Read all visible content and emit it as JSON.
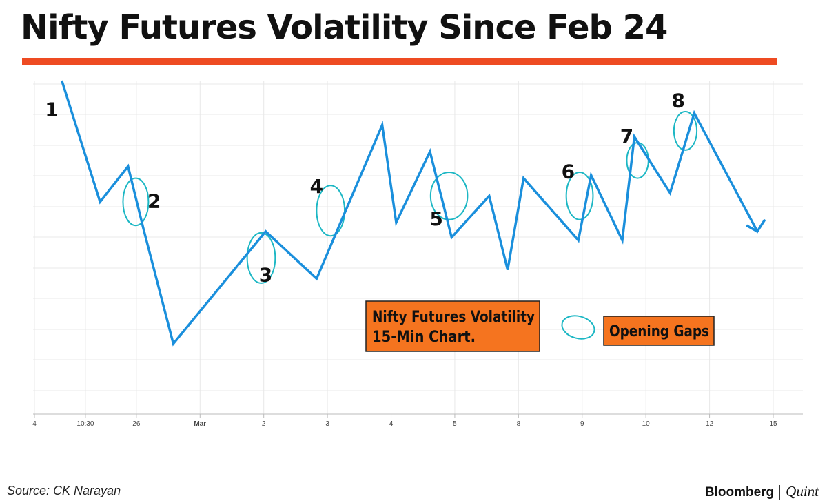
{
  "title": "Nifty Futures Volatility Since Feb 24",
  "footer": {
    "source": "Source: CK Narayan",
    "brand_primary": "Bloomberg",
    "brand_secondary": "Quint"
  },
  "colors": {
    "title_bar": "#ee4b22",
    "line": "#1a8fdc",
    "gap_ellipse": "#1cb7c4",
    "label_box": "#f5741f",
    "grid": "#e8e8e8",
    "axis": "#bbbbbb"
  },
  "chart_data": {
    "type": "line",
    "title": "Nifty Futures Volatility Since Feb 24",
    "xlabel": "",
    "ylabel": "",
    "grid": true,
    "y_tick_labels_shown": false,
    "x_ticks": [
      {
        "label": "4",
        "x": 0
      },
      {
        "label": "10:30",
        "x": 0.8
      },
      {
        "label": "26",
        "x": 1.6
      },
      {
        "label": "Mar",
        "x": 2.6
      },
      {
        "label": "2",
        "x": 3.6
      },
      {
        "label": "3",
        "x": 4.6
      },
      {
        "label": "4",
        "x": 5.6
      },
      {
        "label": "5",
        "x": 6.6
      },
      {
        "label": "8",
        "x": 7.6
      },
      {
        "label": "9",
        "x": 8.6
      },
      {
        "label": "10",
        "x": 9.6
      },
      {
        "label": "12",
        "x": 10.6
      },
      {
        "label": "15",
        "x": 11.6
      }
    ],
    "xlim": [
      0,
      11.6
    ],
    "ylim": [
      0,
      100
    ],
    "series": [
      {
        "name": "Nifty Futures Volatility 15-Min Chart.",
        "points": [
          [
            0.43,
            100
          ],
          [
            1.03,
            59
          ],
          [
            1.47,
            71
          ],
          [
            1.71,
            50
          ],
          [
            2.18,
            11
          ],
          [
            3.63,
            49
          ],
          [
            4.43,
            33
          ],
          [
            5.46,
            85
          ],
          [
            5.68,
            52
          ],
          [
            6.21,
            76
          ],
          [
            6.55,
            47
          ],
          [
            7.14,
            61
          ],
          [
            7.43,
            36
          ],
          [
            7.68,
            67
          ],
          [
            8.54,
            46
          ],
          [
            8.74,
            68
          ],
          [
            9.23,
            46
          ],
          [
            9.42,
            81
          ],
          [
            9.98,
            62
          ],
          [
            10.36,
            89
          ],
          [
            11.35,
            49
          ],
          [
            11.47,
            53
          ]
        ]
      }
    ],
    "arrow_tail": [
      [
        11.35,
        49
      ],
      [
        11.18,
        51
      ]
    ],
    "annotations": [
      {
        "text": "1",
        "x": 0.27,
        "y": 88
      },
      {
        "text": "2",
        "x": 1.88,
        "y": 57
      },
      {
        "text": "3",
        "x": 3.63,
        "y": 32
      },
      {
        "text": "4",
        "x": 4.43,
        "y": 62
      },
      {
        "text": "5",
        "x": 6.31,
        "y": 51
      },
      {
        "text": "6",
        "x": 8.38,
        "y": 67
      },
      {
        "text": "7",
        "x": 9.3,
        "y": 79
      },
      {
        "text": "8",
        "x": 10.11,
        "y": 91
      }
    ],
    "opening_gaps": [
      {
        "x": 1.59,
        "y": 59,
        "rx": 0.2,
        "ry": 8
      },
      {
        "x": 3.56,
        "y": 40,
        "rx": 0.22,
        "ry": 8.5
      },
      {
        "x": 4.65,
        "y": 56,
        "rx": 0.22,
        "ry": 8.5
      },
      {
        "x": 6.51,
        "y": 61,
        "rx": 0.29,
        "ry": 8
      },
      {
        "x": 8.56,
        "y": 61,
        "rx": 0.21,
        "ry": 8
      },
      {
        "x": 9.47,
        "y": 73,
        "rx": 0.17,
        "ry": 6
      },
      {
        "x": 10.22,
        "y": 83,
        "rx": 0.18,
        "ry": 6.5
      }
    ],
    "legend": {
      "series_box": {
        "line1": "Nifty Futures Volatility",
        "line2": "15-Min Chart."
      },
      "gap_label": "Opening Gaps",
      "placement": "bottom-center"
    }
  }
}
